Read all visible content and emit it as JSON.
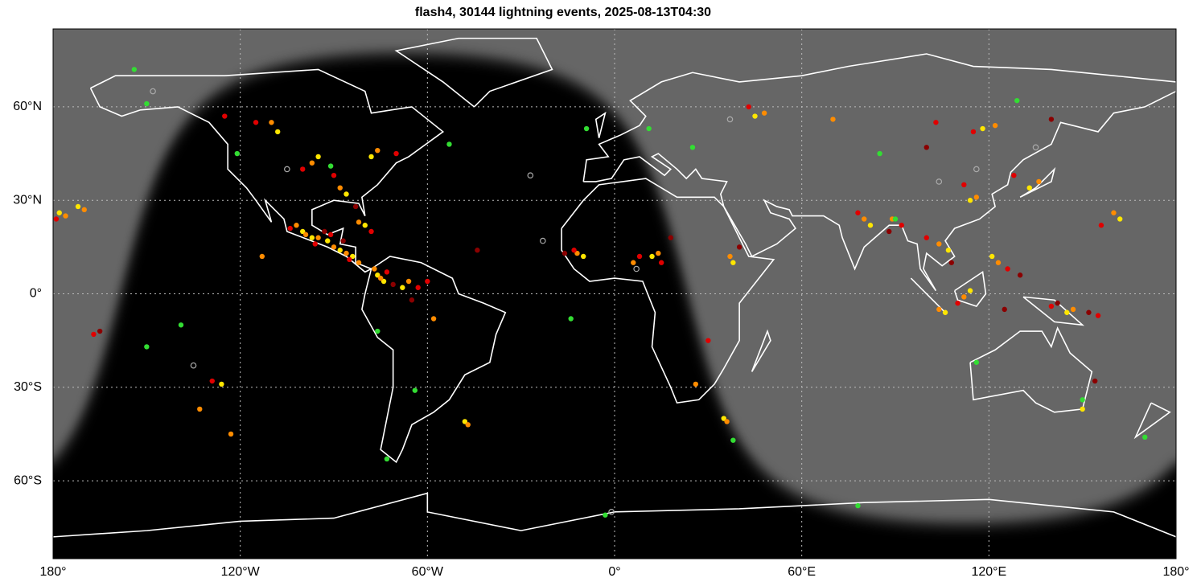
{
  "chart_data": {
    "type": "scatter",
    "title": "flash4, 30144 lightning events,  2025-08-13T04:30",
    "xlim": [
      -180,
      180
    ],
    "ylim": [
      -85,
      85
    ],
    "xticks": [
      {
        "value": -180,
        "label": "180°"
      },
      {
        "value": -120,
        "label": "120°W"
      },
      {
        "value": -60,
        "label": "60°W"
      },
      {
        "value": 0,
        "label": "0°"
      },
      {
        "value": 60,
        "label": "60°E"
      },
      {
        "value": 120,
        "label": "120°E"
      },
      {
        "value": 180,
        "label": "180°"
      }
    ],
    "yticks": [
      {
        "value": -60,
        "label": "60°S"
      },
      {
        "value": -30,
        "label": "30°S"
      },
      {
        "value": 0,
        "label": "0°"
      },
      {
        "value": 30,
        "label": "30°N"
      },
      {
        "value": 60,
        "label": "60°N"
      }
    ],
    "grid": true,
    "series": [
      {
        "color": "#ffe600",
        "x": [
          -100,
          -97,
          -92,
          -88,
          -84,
          -76,
          -74,
          -68,
          -80,
          -86,
          -95,
          -108,
          -78,
          -172,
          -10,
          12,
          38,
          82,
          107,
          121,
          114,
          106,
          145,
          114,
          133,
          118,
          162,
          -178,
          45,
          -48,
          35,
          -126,
          150
        ],
        "y": [
          20,
          18,
          17,
          14,
          12,
          6,
          4,
          2,
          22,
          32,
          44,
          52,
          44,
          28,
          12,
          12,
          10,
          22,
          14,
          12,
          1,
          -6,
          -6,
          30,
          34,
          53,
          24,
          26,
          57,
          -41,
          -40,
          -29,
          -37
        ]
      },
      {
        "color": "#ff8c00",
        "x": [
          -102,
          -99,
          -95,
          -90,
          -86,
          -82,
          -77,
          -75,
          -66,
          -82,
          -88,
          -97,
          -110,
          -76,
          -170,
          -12,
          6,
          14,
          37,
          80,
          89,
          104,
          123,
          112,
          104,
          147,
          116,
          136,
          122,
          160,
          -176,
          48,
          70,
          -47,
          36,
          26,
          -123,
          -133,
          -113,
          -58
        ],
        "y": [
          22,
          19,
          18,
          15,
          13,
          10,
          8,
          5,
          4,
          23,
          34,
          42,
          55,
          46,
          27,
          13,
          10,
          13,
          12,
          24,
          24,
          16,
          10,
          -1,
          -5,
          -5,
          31,
          36,
          54,
          26,
          25,
          58,
          56,
          -42,
          -41,
          -29,
          -45,
          -37,
          12,
          -8
        ]
      },
      {
        "color": "#e00000",
        "x": [
          -104,
          -96,
          -91,
          -85,
          -73,
          -63,
          -60,
          -78,
          -90,
          -100,
          -115,
          -125,
          -70,
          -13,
          8,
          15,
          30,
          78,
          92,
          100,
          126,
          110,
          140,
          155,
          112,
          128,
          115,
          156,
          -179,
          43,
          103,
          -129,
          -167
        ],
        "y": [
          21,
          16,
          19,
          11,
          7,
          2,
          4,
          20,
          38,
          40,
          55,
          57,
          45,
          14,
          12,
          10,
          -15,
          26,
          22,
          18,
          8,
          -3,
          -4,
          -7,
          35,
          38,
          52,
          22,
          24,
          60,
          55,
          -28,
          -13
        ]
      },
      {
        "color": "#8b0000",
        "x": [
          -93,
          -87,
          -71,
          -65,
          -83,
          -44,
          -16,
          18,
          40,
          88,
          108,
          130,
          142,
          125,
          152,
          100,
          140,
          -165,
          154
        ],
        "y": [
          20,
          17,
          3,
          -2,
          28,
          14,
          13,
          18,
          15,
          20,
          10,
          6,
          -3,
          -5,
          -6,
          47,
          56,
          -12,
          -28
        ]
      },
      {
        "color": "#33dd33",
        "x": [
          -150,
          -121,
          -91,
          -53,
          -9,
          11,
          25,
          -14,
          -76,
          -64,
          38,
          -3,
          78,
          90,
          129,
          150,
          -150,
          -139,
          -154,
          85,
          -73,
          116,
          170
        ],
        "y": [
          61,
          45,
          41,
          48,
          53,
          53,
          47,
          -8,
          -12,
          -31,
          -47,
          -71,
          -68,
          24,
          62,
          -34,
          -17,
          -10,
          72,
          45,
          -53,
          -22,
          -46
        ]
      },
      {
        "color": "#aaaaaa",
        "hollow": true,
        "x": [
          -148,
          -105,
          -23,
          -135,
          37,
          135,
          116,
          104,
          -27,
          7,
          -1
        ],
        "y": [
          65,
          40,
          17,
          -23,
          56,
          47,
          40,
          36,
          38,
          8,
          -70
        ]
      }
    ]
  }
}
